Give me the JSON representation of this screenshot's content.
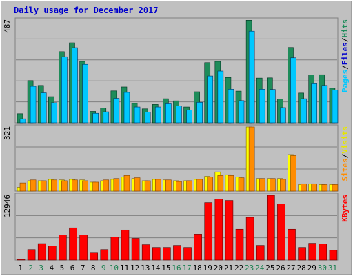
{
  "title": "Daily usage for December 2017",
  "colors": {
    "background": "#c0c0c0",
    "title": "#0000cc",
    "hits": "#1e8c5a",
    "files": "#00c8ff",
    "pages": "#00c8ff",
    "sites": "#ff8c00",
    "visits": "#ffff00",
    "kbytes": "#ff0000",
    "weekend": "#1a8050",
    "weekday": "#000000"
  },
  "chart_data": [
    {
      "type": "bar",
      "panel": "hits-files-pages",
      "max_label": "487",
      "legend": [
        {
          "label": "Pages",
          "color": "#00c8ff"
        },
        {
          "label": "/",
          "color": "#000000"
        },
        {
          "label": "Files",
          "color": "#0000cc"
        },
        {
          "label": "/",
          "color": "#000000"
        },
        {
          "label": "Hits",
          "color": "#1e8c5a"
        }
      ],
      "categories": [
        "1",
        "2",
        "3",
        "4",
        "5",
        "6",
        "7",
        "8",
        "9",
        "10",
        "11",
        "12",
        "13",
        "14",
        "15",
        "16",
        "17",
        "18",
        "19",
        "20",
        "21",
        "22",
        "23",
        "24",
        "25",
        "26",
        "27",
        "28",
        "29",
        "30",
        "31"
      ],
      "ylim": [
        0,
        487
      ],
      "series": [
        {
          "name": "Hits",
          "color": "#1e8c5a",
          "values": [
            43,
            200,
            177,
            124,
            337,
            379,
            291,
            54,
            70,
            151,
            170,
            92,
            66,
            87,
            114,
            104,
            75,
            147,
            285,
            291,
            215,
            150,
            486,
            212,
            213,
            112,
            357,
            141,
            227,
            228,
            164
          ]
        },
        {
          "name": "Files",
          "color": "#00c8ff",
          "values": [
            19,
            173,
            142,
            95,
            313,
            356,
            277,
            45,
            52,
            116,
            144,
            75,
            50,
            75,
            90,
            80,
            61,
            97,
            222,
            245,
            159,
            105,
            434,
            159,
            158,
            72,
            308,
            114,
            185,
            177,
            155
          ]
        },
        {
          "name": "Pages",
          "color": "#00c8ff",
          "values": [
            19,
            173,
            142,
            95,
            313,
            356,
            277,
            45,
            52,
            116,
            144,
            75,
            50,
            75,
            90,
            80,
            61,
            97,
            222,
            245,
            159,
            105,
            434,
            159,
            158,
            72,
            308,
            114,
            185,
            177,
            155
          ]
        }
      ]
    },
    {
      "type": "bar",
      "panel": "sites-visits",
      "max_label": "321",
      "legend": [
        {
          "label": "Sites",
          "color": "#ff8c00"
        },
        {
          "label": "/",
          "color": "#000000"
        },
        {
          "label": "Visits",
          "color": "#e6e600"
        }
      ],
      "categories": [
        "1",
        "2",
        "3",
        "4",
        "5",
        "6",
        "7",
        "8",
        "9",
        "10",
        "11",
        "12",
        "13",
        "14",
        "15",
        "16",
        "17",
        "18",
        "19",
        "20",
        "21",
        "22",
        "23",
        "24",
        "25",
        "26",
        "27",
        "28",
        "29",
        "30",
        "31"
      ],
      "ylim": [
        0,
        321
      ],
      "series": [
        {
          "name": "Visits",
          "color": "#ffff00",
          "values": [
            19,
            52,
            52,
            59,
            56,
            59,
            56,
            45,
            52,
            59,
            71,
            63,
            52,
            59,
            56,
            52,
            52,
            59,
            74,
            96,
            82,
            70,
            321,
            63,
            63,
            63,
            183,
            33,
            37,
            33,
            33
          ]
        },
        {
          "name": "Sites",
          "color": "#ff8c00",
          "values": [
            41,
            56,
            52,
            56,
            52,
            56,
            52,
            45,
            56,
            63,
            78,
            67,
            52,
            59,
            56,
            48,
            52,
            59,
            71,
            78,
            78,
            67,
            321,
            63,
            63,
            59,
            178,
            37,
            37,
            33,
            33
          ]
        }
      ]
    },
    {
      "type": "bar",
      "panel": "kbytes",
      "max_label": "12946",
      "legend": [
        {
          "label": "KBytes",
          "color": "#ff0000"
        }
      ],
      "categories": [
        "1",
        "2",
        "3",
        "4",
        "5",
        "6",
        "7",
        "8",
        "9",
        "10",
        "11",
        "12",
        "13",
        "14",
        "15",
        "16",
        "17",
        "18",
        "19",
        "20",
        "21",
        "22",
        "23",
        "24",
        "25",
        "26",
        "27",
        "28",
        "29",
        "30",
        "31"
      ],
      "ylim": [
        0,
        12946
      ],
      "series": [
        {
          "name": "KBytes",
          "color": "#ff0000",
          "values": [
            140,
            2100,
            3296,
            2800,
            5040,
            6440,
            5040,
            1540,
            2100,
            4620,
            6020,
            4340,
            3080,
            2520,
            2520,
            2940,
            2520,
            5180,
            11480,
            12180,
            11900,
            6160,
            8540,
            2940,
            12940,
            11200,
            6160,
            2520,
            3360,
            3220,
            1960
          ]
        }
      ]
    }
  ],
  "x_axis": {
    "labels": [
      "1",
      "2",
      "3",
      "4",
      "5",
      "6",
      "7",
      "8",
      "9",
      "10",
      "11",
      "12",
      "13",
      "14",
      "15",
      "16",
      "17",
      "18",
      "19",
      "20",
      "21",
      "22",
      "23",
      "24",
      "25",
      "26",
      "27",
      "28",
      "29",
      "30",
      "31"
    ],
    "weekend_days": [
      2,
      3,
      9,
      10,
      16,
      17,
      23,
      24,
      30,
      31
    ]
  }
}
